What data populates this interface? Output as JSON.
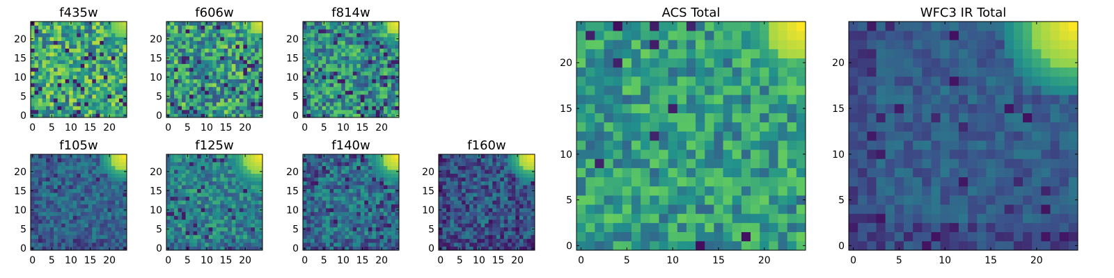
{
  "chart_data": {
    "type": "heatmap",
    "colormap": "viridis",
    "colorscale": [
      "#440154",
      "#3b528b",
      "#21918c",
      "#5ec962",
      "#fde725"
    ],
    "grid_size": 25,
    "panels": [
      {
        "id": "f435w",
        "title": "f435w",
        "xlim": [
          0,
          24
        ],
        "ylim": [
          0,
          24
        ],
        "xticks": [
          0,
          5,
          10,
          15,
          20
        ],
        "yticks": [
          0,
          5,
          10,
          15,
          20
        ],
        "base_level": 0.6,
        "noise": 0.3,
        "dark_fraction": 0.07,
        "dark_level": 0.05,
        "gradient_bias": 0.0,
        "corner_level": 0.9,
        "corner_radius": 4,
        "seed": 11
      },
      {
        "id": "f606w",
        "title": "f606w",
        "xlim": [
          0,
          24
        ],
        "ylim": [
          0,
          24
        ],
        "xticks": [
          0,
          5,
          10,
          15,
          20
        ],
        "yticks": [
          0,
          5,
          10,
          15,
          20
        ],
        "base_level": 0.55,
        "noise": 0.3,
        "dark_fraction": 0.06,
        "dark_level": 0.05,
        "gradient_bias": 0.0,
        "corner_level": 0.95,
        "corner_radius": 3,
        "seed": 23
      },
      {
        "id": "f814w",
        "title": "f814w",
        "xlim": [
          0,
          24
        ],
        "ylim": [
          0,
          24
        ],
        "xticks": [
          0,
          5,
          10,
          15,
          20
        ],
        "yticks": [
          0,
          5,
          10,
          15,
          20
        ],
        "base_level": 0.5,
        "noise": 0.28,
        "dark_fraction": 0.07,
        "dark_level": 0.05,
        "gradient_bias": 0.0,
        "corner_level": 0.98,
        "corner_radius": 3,
        "seed": 37
      },
      {
        "id": "f105w",
        "title": "f105w",
        "xlim": [
          0,
          24
        ],
        "ylim": [
          0,
          24
        ],
        "xticks": [
          0,
          5,
          10,
          15,
          20
        ],
        "yticks": [
          0,
          5,
          10,
          15,
          20
        ],
        "base_level": 0.33,
        "noise": 0.14,
        "dark_fraction": 0.05,
        "dark_level": 0.08,
        "gradient_bias": 0.06,
        "corner_level": 1.0,
        "corner_radius": 4,
        "seed": 41
      },
      {
        "id": "f125w",
        "title": "f125w",
        "xlim": [
          0,
          24
        ],
        "ylim": [
          0,
          24
        ],
        "xticks": [
          0,
          5,
          10,
          15,
          20
        ],
        "yticks": [
          0,
          5,
          10,
          15,
          20
        ],
        "base_level": 0.45,
        "noise": 0.2,
        "dark_fraction": 0.06,
        "dark_level": 0.06,
        "gradient_bias": 0.06,
        "corner_level": 1.0,
        "corner_radius": 5,
        "seed": 53
      },
      {
        "id": "f140w",
        "title": "f140w",
        "xlim": [
          0,
          24
        ],
        "ylim": [
          0,
          24
        ],
        "xticks": [
          0,
          5,
          10,
          15,
          20
        ],
        "yticks": [
          0,
          5,
          10,
          15,
          20
        ],
        "base_level": 0.38,
        "noise": 0.18,
        "dark_fraction": 0.07,
        "dark_level": 0.06,
        "gradient_bias": 0.06,
        "corner_level": 1.0,
        "corner_radius": 4,
        "seed": 67
      },
      {
        "id": "f160w",
        "title": "f160w",
        "xlim": [
          0,
          24
        ],
        "ylim": [
          0,
          24
        ],
        "xticks": [
          0,
          5,
          10,
          15,
          20
        ],
        "yticks": [
          0,
          5,
          10,
          15,
          20
        ],
        "base_level": 0.28,
        "noise": 0.18,
        "dark_fraction": 0.09,
        "dark_level": 0.04,
        "gradient_bias": 0.06,
        "corner_level": 1.0,
        "corner_radius": 4,
        "seed": 79
      },
      {
        "id": "acs-total",
        "title": "ACS Total",
        "xlim": [
          0,
          24
        ],
        "ylim": [
          0,
          24
        ],
        "xticks": [
          0,
          5,
          10,
          15,
          20
        ],
        "yticks": [
          0,
          5,
          10,
          15,
          20
        ],
        "base_level": 0.55,
        "noise": 0.22,
        "dark_fraction": 0.03,
        "dark_level": 0.04,
        "gradient_bias": 0.0,
        "corner_level": 1.0,
        "corner_radius": 4,
        "seed": 97
      },
      {
        "id": "wfc3-ir-total",
        "title": "WFC3 IR Total",
        "xlim": [
          0,
          24
        ],
        "ylim": [
          0,
          24
        ],
        "xticks": [
          0,
          5,
          10,
          15,
          20
        ],
        "yticks": [
          0,
          5,
          10,
          15,
          20
        ],
        "base_level": 0.3,
        "noise": 0.1,
        "dark_fraction": 0.06,
        "dark_level": 0.05,
        "gradient_bias": 0.08,
        "corner_level": 1.0,
        "corner_radius": 5,
        "seed": 113
      }
    ]
  }
}
